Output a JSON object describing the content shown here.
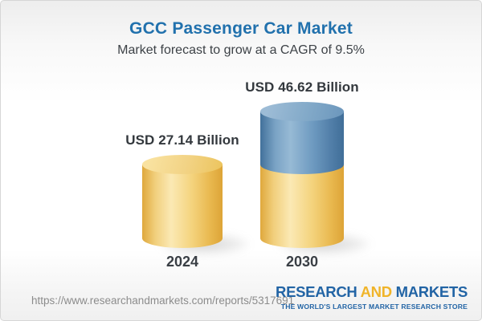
{
  "header": {
    "title": "GCC Passenger Car Market",
    "subtitle": "Market forecast to grow at a CAGR of 9.5%"
  },
  "chart_data": {
    "type": "bar",
    "subtype": "3d-cylinder",
    "title": "GCC Passenger Car Market",
    "subtitle": "Market forecast to grow at a CAGR of 9.5%",
    "unit": "USD Billion",
    "cagr_percent": 9.5,
    "categories": [
      "2024",
      "2030"
    ],
    "values": [
      27.14,
      46.62
    ],
    "ylim": [
      0,
      46.62
    ],
    "grid": false,
    "legend": false,
    "colors": {
      "base": "#f0cb6e",
      "growth": "#5c8cb5"
    },
    "bars": [
      {
        "year": "2024",
        "label": "USD 27.14 Billion",
        "total": 27.14,
        "segments": [
          {
            "value": 27.14,
            "color_key": "base"
          }
        ]
      },
      {
        "year": "2030",
        "label": "USD 46.62 Billion",
        "total": 46.62,
        "segments": [
          {
            "value": 27.14,
            "color_key": "base"
          },
          {
            "value": 19.48,
            "color_key": "growth"
          }
        ]
      }
    ]
  },
  "footer": {
    "url": "https://www.researchandmarkets.com/reports/5317691",
    "logo": {
      "part1": "RESEARCH",
      "part2": "AND",
      "part3": "MARKETS",
      "tagline": "THE WORLD'S LARGEST MARKET RESEARCH STORE"
    }
  }
}
